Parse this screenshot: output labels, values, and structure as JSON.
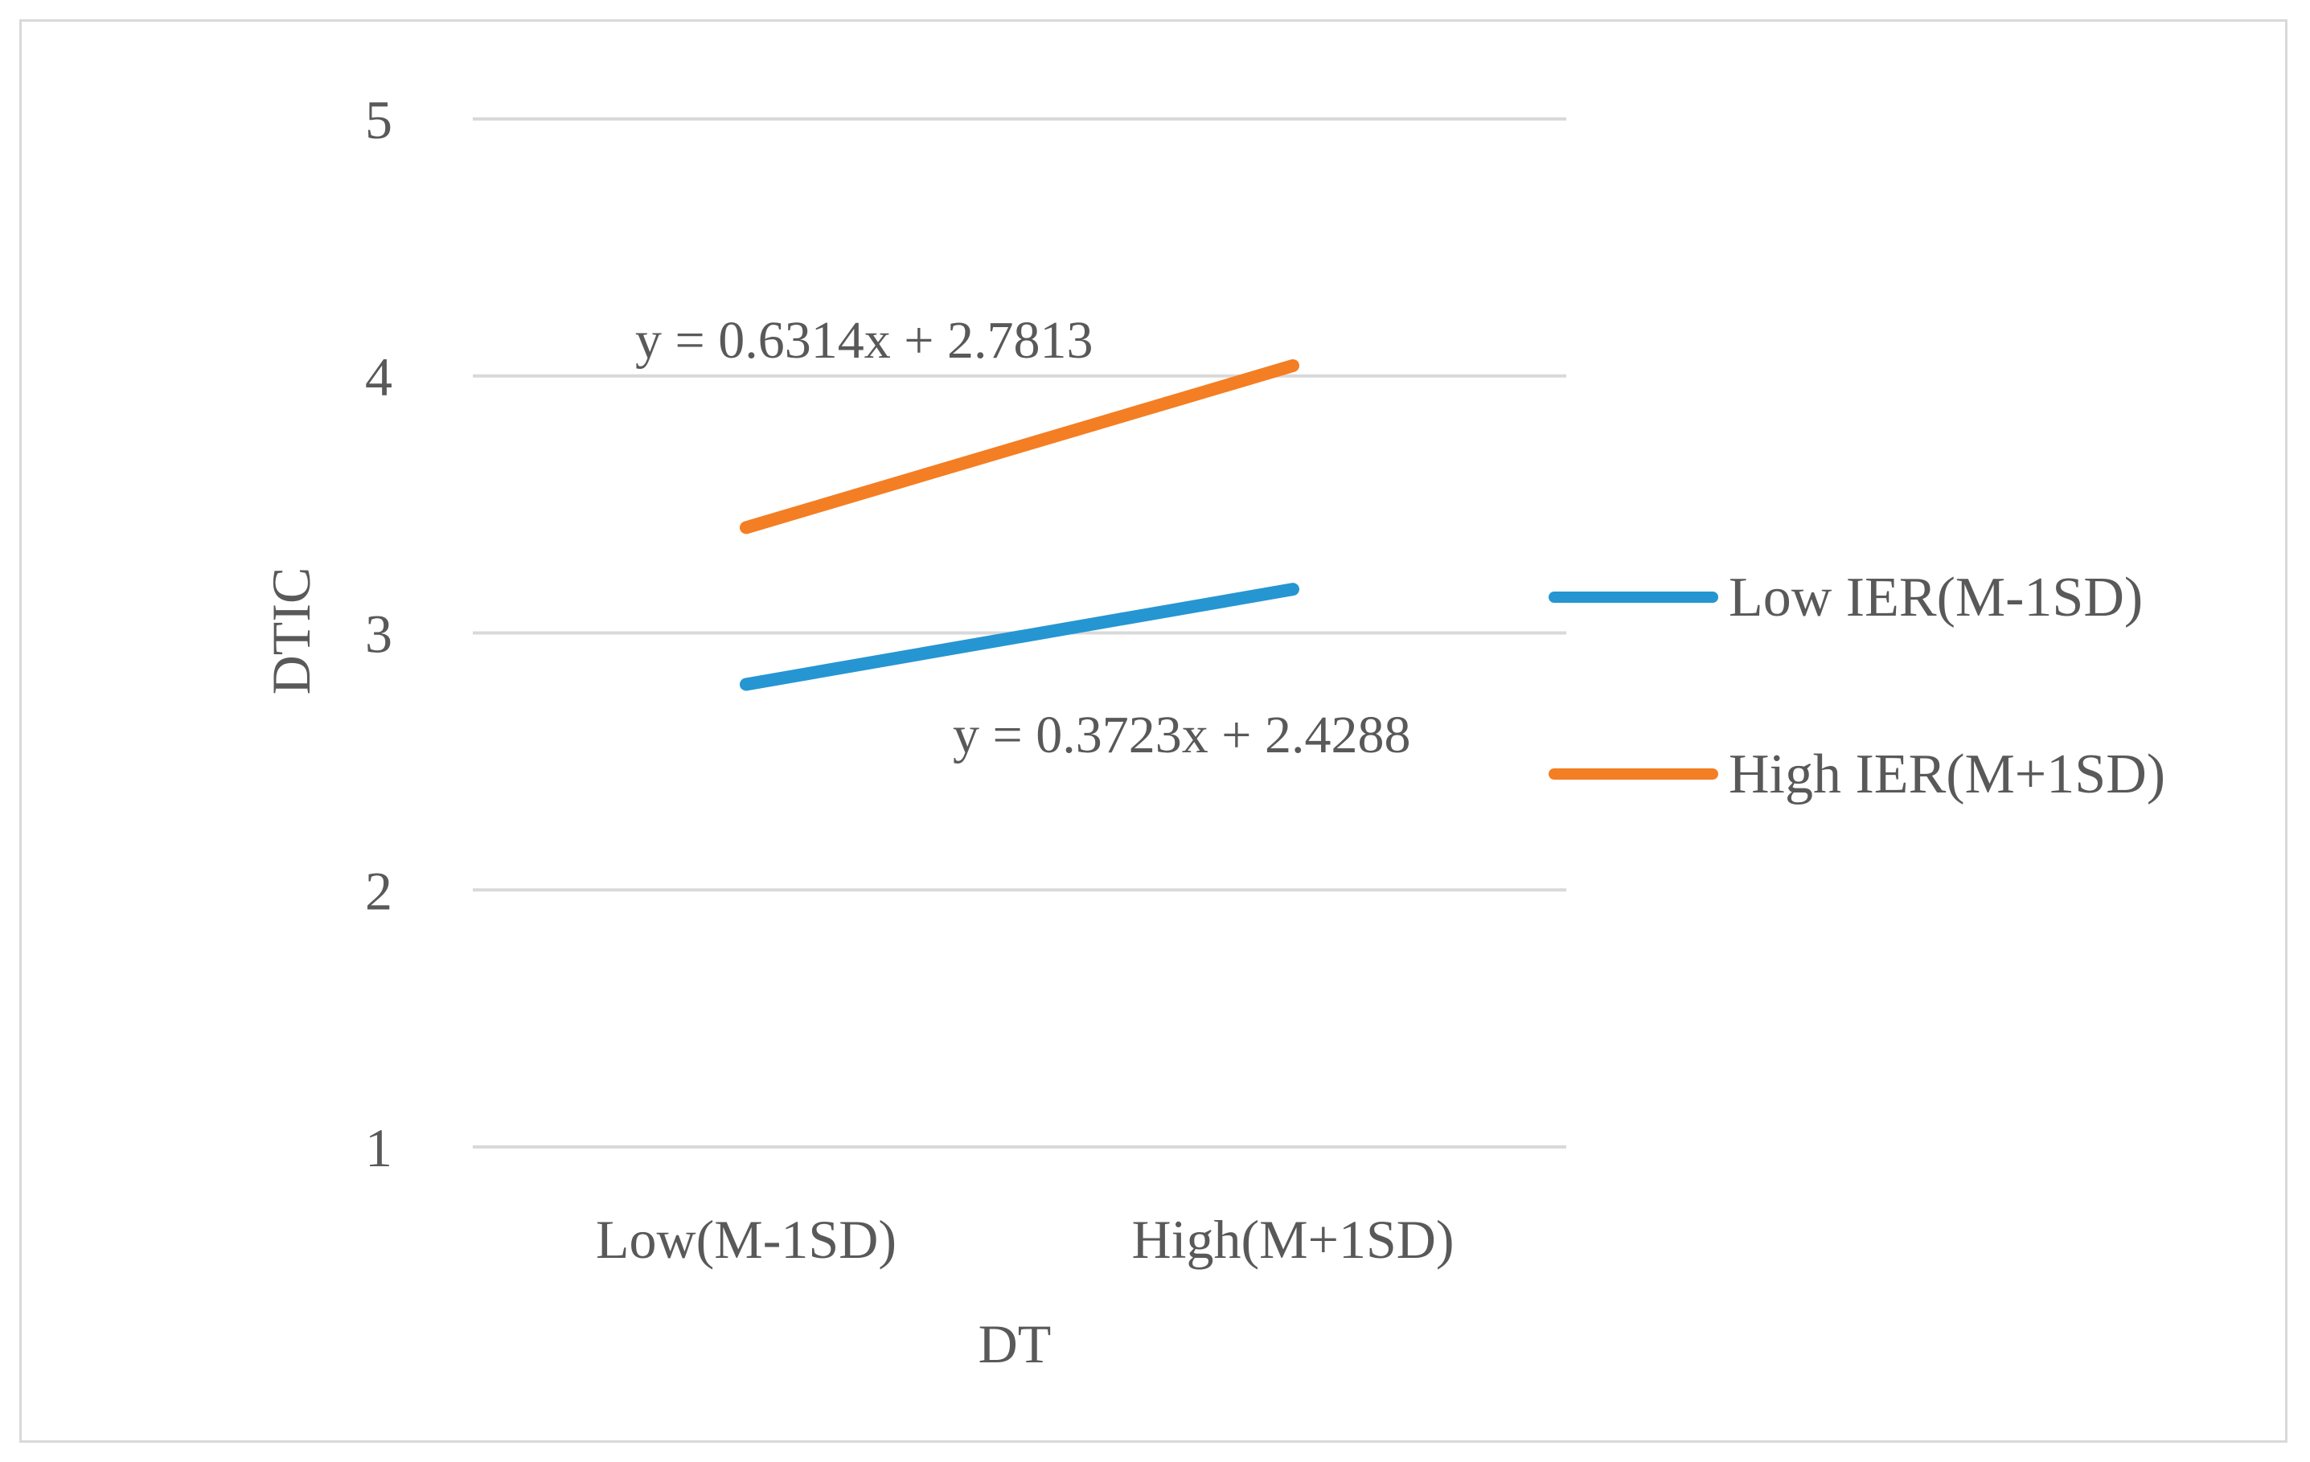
{
  "chart_data": {
    "type": "line",
    "title": "",
    "xlabel": "DT",
    "ylabel": "DTIC",
    "categories": [
      "Low(M-1SD)",
      "High(M+1SD)"
    ],
    "ylim": [
      1,
      5
    ],
    "yticks": [
      1,
      2,
      3,
      4,
      5
    ],
    "grid": true,
    "legend_position": "right",
    "series": [
      {
        "name": "Low IER(M-1SD)",
        "color": "#2596d1",
        "values": [
          2.8,
          3.17
        ],
        "trendline_label": "y = 0.3723x + 2.4288"
      },
      {
        "name": "High IER(M+1SD)",
        "color": "#f47e23",
        "values": [
          3.41,
          4.04
        ],
        "trendline_label": "y = 0.6314x + 2.7813"
      }
    ]
  }
}
